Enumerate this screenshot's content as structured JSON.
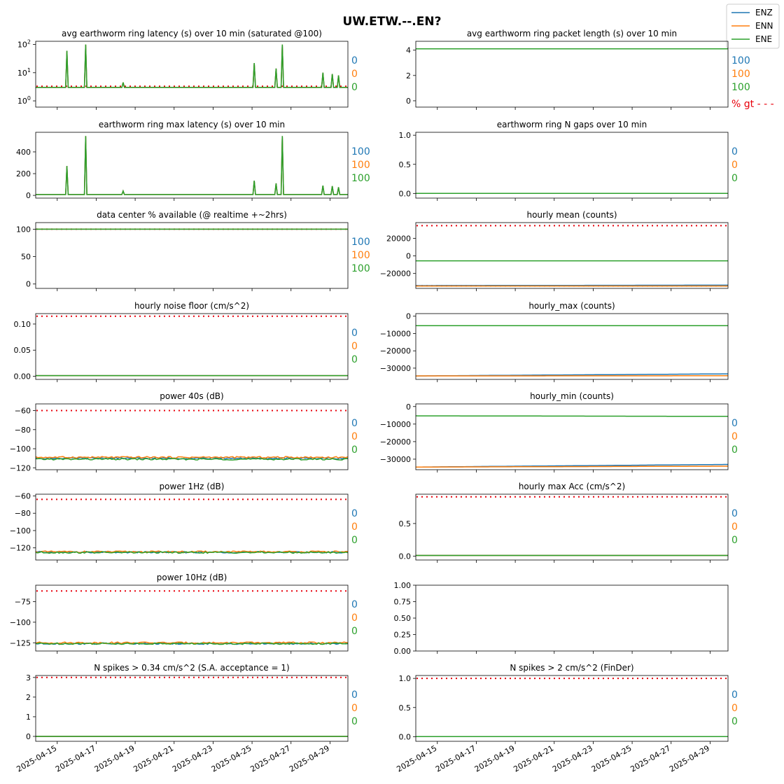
{
  "figure": {
    "suptitle": "UW.ETW.--.EN?",
    "legend": [
      "ENZ",
      "ENN",
      "ENE"
    ],
    "legend_position": "top-right",
    "colors": {
      "ENZ": "#1f77b4",
      "ENN": "#ff7f0e",
      "ENE": "#2ca02c",
      "threshold": "#e8000b"
    },
    "pct_label": "% gt - - -"
  },
  "chart_data": [
    {
      "type": "line",
      "title": "avg earthworm ring latency (s)   over 10 min (saturated @100)",
      "yscale": "log",
      "ylim": [
        0.6,
        130
      ],
      "ytick_labels": [
        {
          "v": 1,
          "base": "10",
          "exp": "0"
        },
        {
          "v": 10,
          "base": "10",
          "exp": "1"
        },
        {
          "v": 100,
          "base": "10",
          "exp": "2"
        }
      ],
      "baseline": 3,
      "spikes": [
        [
          0.1,
          60
        ],
        [
          0.16,
          100
        ],
        [
          0.28,
          4.5
        ],
        [
          0.7,
          22
        ],
        [
          0.77,
          14
        ],
        [
          0.79,
          100
        ],
        [
          0.92,
          10
        ],
        [
          0.95,
          9
        ],
        [
          0.97,
          8
        ]
      ],
      "thresholds": [
        3.3
      ],
      "stats": [
        "0",
        "0",
        "0"
      ]
    },
    {
      "type": "line",
      "title": "avg earthworm ring packet length (s)   over 10 min",
      "ylim": [
        -0.5,
        4.7
      ],
      "yticks": [
        0,
        2,
        4
      ],
      "ytick_labels": [
        "0",
        "2",
        "4"
      ],
      "baseline": 4.1,
      "thresholds": [],
      "stats": [
        "100",
        "100",
        "100"
      ]
    },
    {
      "type": "line",
      "title": "earthworm ring max latency (s)   over 10 min",
      "ylim": [
        -25,
        580
      ],
      "yticks": [
        0,
        200,
        400
      ],
      "ytick_labels": [
        "0",
        "200",
        "400"
      ],
      "baseline": 8,
      "spikes": [
        [
          0.1,
          270
        ],
        [
          0.16,
          545
        ],
        [
          0.28,
          40
        ],
        [
          0.7,
          135
        ],
        [
          0.77,
          110
        ],
        [
          0.79,
          545
        ],
        [
          0.92,
          90
        ],
        [
          0.95,
          85
        ],
        [
          0.97,
          75
        ]
      ],
      "thresholds": [],
      "stats": [
        "100",
        "100",
        "100"
      ]
    },
    {
      "type": "line",
      "title": "earthworm ring N gaps   over 10 min",
      "ylim": [
        -0.08,
        1.05
      ],
      "yticks": [
        0,
        0.5,
        1
      ],
      "ytick_labels": [
        "0.0",
        "0.5",
        "1.0"
      ],
      "baseline": 0,
      "thresholds": [],
      "stats": [
        "0",
        "0",
        "0"
      ]
    },
    {
      "type": "line",
      "title": "data center % available (@ realtime +~2hrs)",
      "ylim": [
        -8,
        112
      ],
      "yticks": [
        0,
        50,
        100
      ],
      "ytick_labels": [
        "0",
        "50",
        "100"
      ],
      "baseline": 100,
      "thresholds": [
        100
      ],
      "stats": [
        "100",
        "100",
        "100"
      ]
    },
    {
      "type": "line",
      "title": "hourly mean (counts)",
      "ylim": [
        -37000,
        38000
      ],
      "yticks": [
        -20000,
        0,
        20000
      ],
      "ytick_labels": [
        "−20000",
        "0",
        "20000"
      ],
      "series": {
        "ENZ": [
          -33800,
          -33300
        ],
        "ENN": [
          -34300,
          -34300
        ],
        "ENE": [
          -5600,
          -5600
        ]
      },
      "thresholds": [
        34500,
        -34000
      ],
      "stats": [
        "",
        "",
        ""
      ]
    },
    {
      "type": "line",
      "title": "hourly noise floor (cm/s^2)",
      "ylim": [
        -0.006,
        0.12
      ],
      "yticks": [
        0,
        0.05,
        0.1
      ],
      "ytick_labels": [
        "0.00",
        "0.05",
        "0.10"
      ],
      "baseline": 0.0012,
      "thresholds": [
        0.115
      ],
      "stats": [
        "0",
        "0",
        "0"
      ]
    },
    {
      "type": "line",
      "title": "hourly_max (counts)",
      "ylim": [
        -36500,
        1500
      ],
      "yticks": [
        -30000,
        -20000,
        -10000,
        0
      ],
      "ytick_labels": [
        "−30000",
        "−20000",
        "−10000",
        "0"
      ],
      "series": {
        "ENZ": [
          -34500,
          -33300
        ],
        "ENN": [
          -34500,
          -34400
        ],
        "ENE": [
          -5500,
          -5500
        ]
      },
      "thresholds": [],
      "stats": [
        "",
        "",
        ""
      ]
    },
    {
      "type": "line",
      "title": "power 40s (dB)",
      "ylim": [
        -122,
        -53
      ],
      "yticks": [
        -120,
        -100,
        -80,
        -60
      ],
      "ytick_labels": [
        "−120",
        "−100",
        "−80",
        "−60"
      ],
      "series": {
        "ENZ": [
          -110,
          -110
        ],
        "ENN": [
          -109,
          -109
        ],
        "ENE": [
          -111,
          -111
        ]
      },
      "thresholds": [
        -60
      ],
      "stats": [
        "0",
        "0",
        "0"
      ]
    },
    {
      "type": "line",
      "title": "hourly_min (counts)",
      "ylim": [
        -36000,
        1500
      ],
      "yticks": [
        -30000,
        -20000,
        -10000,
        0
      ],
      "ytick_labels": [
        "−30000",
        "−20000",
        "−10000",
        "0"
      ],
      "series": {
        "ENZ": [
          -34500,
          -33000
        ],
        "ENN": [
          -34500,
          -34000
        ],
        "ENE": [
          -5300,
          -5600
        ]
      },
      "thresholds": [],
      "stats": [
        "0",
        "0",
        "0"
      ]
    },
    {
      "type": "line",
      "title": "power 1Hz (dB)",
      "ylim": [
        -134,
        -58
      ],
      "yticks": [
        -120,
        -100,
        -80,
        -60
      ],
      "ytick_labels": [
        "−120",
        "−100",
        "−80",
        "−60"
      ],
      "series": {
        "ENZ": [
          -125,
          -125
        ],
        "ENN": [
          -124.5,
          -124.5
        ],
        "ENE": [
          -125.3,
          -125.3
        ]
      },
      "thresholds": [
        -64
      ],
      "stats": [
        "0",
        "0",
        "0"
      ]
    },
    {
      "type": "line",
      "title": "hourly max Acc (cm/s^2)",
      "ylim": [
        -0.06,
        0.95
      ],
      "yticks": [
        0,
        0.5
      ],
      "ytick_labels": [
        "0.0",
        "0.5"
      ],
      "baseline": 0.01,
      "thresholds": [
        0.91
      ],
      "stats": [
        "0",
        "0",
        "0"
      ]
    },
    {
      "type": "line",
      "title": "power 10Hz (dB)",
      "ylim": [
        -135,
        -55
      ],
      "yticks": [
        -125,
        -100,
        -75
      ],
      "ytick_labels": [
        "−125",
        "−100",
        "−75"
      ],
      "series": {
        "ENZ": [
          -126,
          -126
        ],
        "ENN": [
          -125,
          -125
        ],
        "ENE": [
          -126,
          -126
        ]
      },
      "thresholds": [
        -62
      ],
      "stats": [
        "0",
        "0",
        "0"
      ]
    },
    {
      "type": "line",
      "title": "",
      "ylim": [
        0,
        1
      ],
      "yticks": [
        0,
        0.25,
        0.5,
        0.75,
        1
      ],
      "ytick_labels": [
        "0.00",
        "0.25",
        "0.50",
        "0.75",
        "1.00"
      ],
      "series": {},
      "thresholds": [],
      "stats": [
        "",
        "",
        ""
      ]
    },
    {
      "type": "line",
      "title": "N spikes > 0.34 cm/s^2 (S.A. acceptance = 1)",
      "ylim": [
        -0.25,
        3.1
      ],
      "yticks": [
        0,
        1,
        2,
        3
      ],
      "ytick_labels": [
        "0",
        "1",
        "2",
        "3"
      ],
      "baseline": 0,
      "thresholds": [
        3
      ],
      "stats": [
        "0",
        "0",
        "0"
      ]
    },
    {
      "type": "line",
      "title": "N spikes > 2 cm/s^2 (FinDer)",
      "ylim": [
        -0.08,
        1.05
      ],
      "yticks": [
        0,
        0.5,
        1
      ],
      "ytick_labels": [
        "0.0",
        "0.5",
        "1.0"
      ],
      "baseline": 0,
      "thresholds": [
        1
      ],
      "stats": [
        "0",
        "0",
        "0"
      ]
    }
  ],
  "x_axis": {
    "tick_labels": [
      "2025-04-15",
      "2025-04-17",
      "2025-04-19",
      "2025-04-21",
      "2025-04-23",
      "2025-04-25",
      "2025-04-27",
      "2025-04-29"
    ]
  }
}
